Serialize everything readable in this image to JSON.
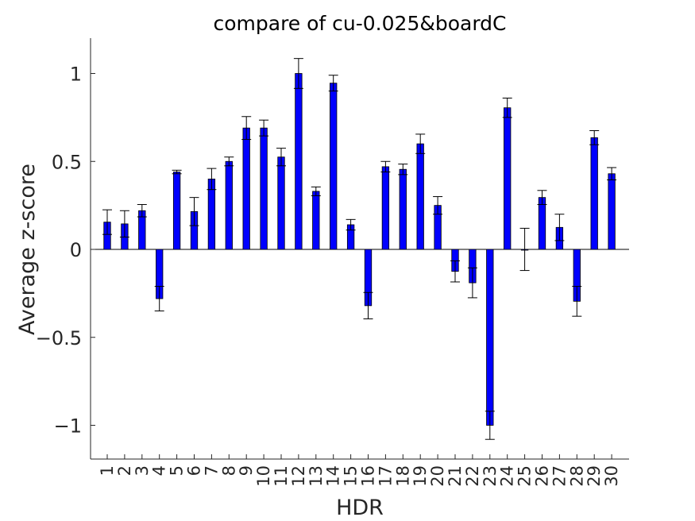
{
  "chart_data": {
    "type": "bar",
    "title": "compare of cu-0.025&boardC",
    "xlabel": "HDR",
    "ylabel": "Average z-score",
    "ylim": [
      -1.2,
      1.2
    ],
    "yticks": [
      -1,
      -0.5,
      0,
      0.5,
      1
    ],
    "ytick_labels": [
      "−1",
      "−0.5",
      "0",
      "0.5",
      "1"
    ],
    "categories": [
      "1",
      "2",
      "3",
      "4",
      "5",
      "6",
      "7",
      "8",
      "9",
      "10",
      "11",
      "12",
      "13",
      "14",
      "15",
      "16",
      "17",
      "18",
      "19",
      "20",
      "21",
      "22",
      "23",
      "24",
      "25",
      "26",
      "27",
      "28",
      "29",
      "30"
    ],
    "values": [
      0.155,
      0.145,
      0.22,
      -0.28,
      0.44,
      0.215,
      0.4,
      0.5,
      0.69,
      0.69,
      0.525,
      1.0,
      0.33,
      0.945,
      0.14,
      -0.32,
      0.47,
      0.455,
      0.6,
      0.25,
      -0.125,
      -0.19,
      -1.0,
      0.805,
      0.0,
      0.295,
      0.125,
      -0.295,
      0.635,
      0.43
    ],
    "errors": [
      0.07,
      0.075,
      0.035,
      0.07,
      0.01,
      0.08,
      0.06,
      0.025,
      0.065,
      0.045,
      0.05,
      0.085,
      0.025,
      0.045,
      0.03,
      0.075,
      0.03,
      0.03,
      0.055,
      0.05,
      0.06,
      0.085,
      0.08,
      0.055,
      0.12,
      0.04,
      0.075,
      0.085,
      0.04,
      0.035
    ],
    "bar_color": "#0000ff",
    "bar_edge_color": "#000000",
    "zero_line": true,
    "grid": false
  }
}
